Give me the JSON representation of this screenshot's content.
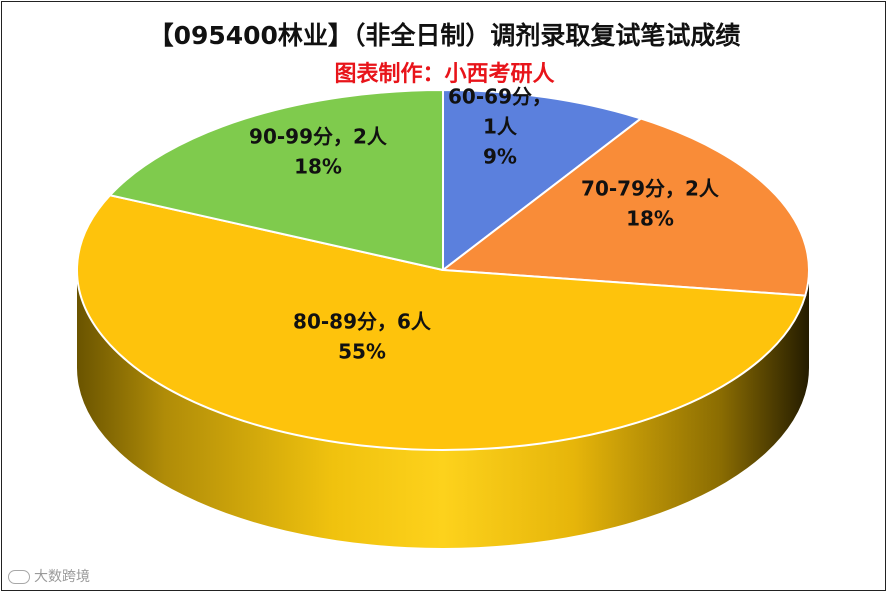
{
  "chart_data": {
    "type": "pie",
    "title": "【095400林业】（非全日制）调剂录取复试笔试成绩",
    "subtitle": "图表制作：小西考研人",
    "slices": [
      {
        "category": "60-69分",
        "count": 1,
        "percent": 9,
        "text": [
          "60-69分，",
          "1人",
          "9%"
        ],
        "color": "#5b80dd"
      },
      {
        "category": "70-79分",
        "count": 2,
        "percent": 18,
        "text": [
          "70-79分，2人",
          "18%"
        ],
        "color": "#f98c38"
      },
      {
        "category": "80-89分",
        "count": 6,
        "percent": 55,
        "text": [
          "80-89分，6人",
          "55%"
        ],
        "color": "#fec30c"
      },
      {
        "category": "90-99分",
        "count": 2,
        "percent": 18,
        "text": [
          "90-99分，2人",
          "18%"
        ],
        "color": "#7fcb4d"
      }
    ],
    "legend": "none",
    "style": "3d-pie"
  },
  "watermark": "大数跨境"
}
